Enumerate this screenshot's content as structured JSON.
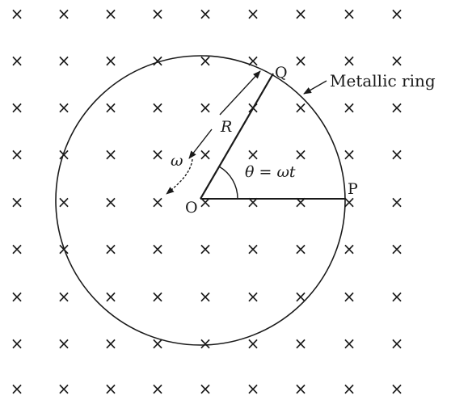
{
  "field_symbol": "×",
  "labels": {
    "center": "O",
    "point_q": "Q",
    "point_p": "P",
    "radius": "R",
    "omega": "ω",
    "angle": "θ = ωt",
    "ring_callout": "Metallic ring"
  }
}
